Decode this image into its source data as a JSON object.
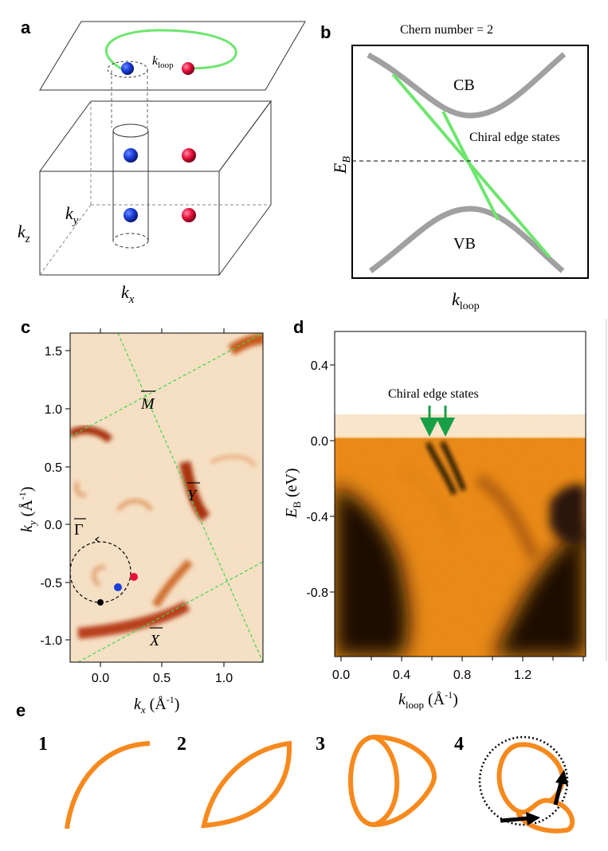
{
  "panels": {
    "a": {
      "label": "a",
      "k_loop_main": "k",
      "k_loop_sub": "loop",
      "axis_kz_main": "k",
      "axis_kz_sub": "z",
      "axis_ky_main": "k",
      "axis_ky_sub": "y",
      "axis_kx_main": "k",
      "axis_kx_sub": "x"
    },
    "b": {
      "label": "b",
      "title": "Chern number = 2",
      "cb": "CB",
      "vb": "VB",
      "chiral": "Chiral edge states",
      "ylabel_main": "E",
      "ylabel_sub": "B",
      "xlabel_main": "k",
      "xlabel_sub": "loop"
    },
    "c": {
      "label": "c",
      "yticks": [
        "1.5",
        "1.0",
        "0.5",
        "0.0",
        "-0.5",
        "-1.0"
      ],
      "xticks": [
        "0.0",
        "0.5",
        "1.0"
      ],
      "ylabel_main": "k",
      "ylabel_sub": "y",
      "ylabel_unit": "(Å",
      "ylabel_exp": "-1",
      "ylabel_close": ")",
      "xlabel_main": "k",
      "xlabel_sub": "x",
      "xlabel_unit": "(Å",
      "xlabel_exp": "-1",
      "xlabel_close": ")",
      "point_M": "M",
      "point_Y": "Y",
      "point_X": "X",
      "point_G": "Γ"
    },
    "d": {
      "label": "d",
      "chiral": "Chiral edge states",
      "yticks": [
        "0.4",
        "0.0",
        "-0.4",
        "-0.8"
      ],
      "xticks": [
        "0.0",
        "0.4",
        "0.8",
        "1.2"
      ],
      "ylabel_main": "E",
      "ylabel_sub": "B",
      "ylabel_unit": "(eV)",
      "xlabel_main": "k",
      "xlabel_sub": "loop",
      "xlabel_unit": "(Å",
      "xlabel_exp": "-1",
      "xlabel_close": ")"
    },
    "e": {
      "label": "e",
      "steps": [
        "1",
        "2",
        "3",
        "4"
      ]
    }
  },
  "colors": {
    "green": "#6ee66e",
    "blue": "#1a3ddb",
    "red": "#e8103a",
    "orange": "#f7891d",
    "gray": "#a0a0a0"
  }
}
